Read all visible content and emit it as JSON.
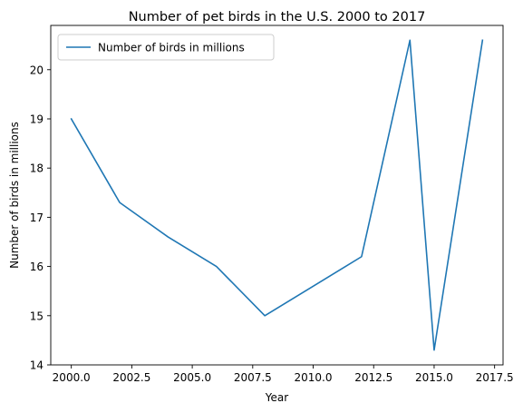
{
  "chart_data": {
    "type": "line",
    "title": "Number of pet birds in the U.S. 2000 to 2017",
    "xlabel": "Year",
    "ylabel": "Number of birds in millions",
    "xlim": [
      1999.15,
      2017.85
    ],
    "ylim": [
      14.0,
      20.9
    ],
    "xticks": [
      2000.0,
      2002.5,
      2005.0,
      2007.5,
      2010.0,
      2012.5,
      2015.0,
      2017.5
    ],
    "xtick_labels": [
      "2000.0",
      "2002.5",
      "2005.0",
      "2007.5",
      "2010.0",
      "2012.5",
      "2015.0",
      "2017.5"
    ],
    "yticks": [
      14,
      15,
      16,
      17,
      18,
      19,
      20
    ],
    "ytick_labels": [
      "14",
      "15",
      "16",
      "17",
      "18",
      "19",
      "20"
    ],
    "grid": false,
    "legend_position": "upper-left",
    "series": [
      {
        "name": "Number of birds in millions",
        "color": "#1f77b4",
        "x": [
          2000,
          2002,
          2004,
          2006,
          2008,
          2010,
          2012,
          2014,
          2015,
          2017
        ],
        "y": [
          19.0,
          17.3,
          16.6,
          16.0,
          15.0,
          15.6,
          16.2,
          20.6,
          14.3,
          20.6
        ]
      }
    ]
  }
}
